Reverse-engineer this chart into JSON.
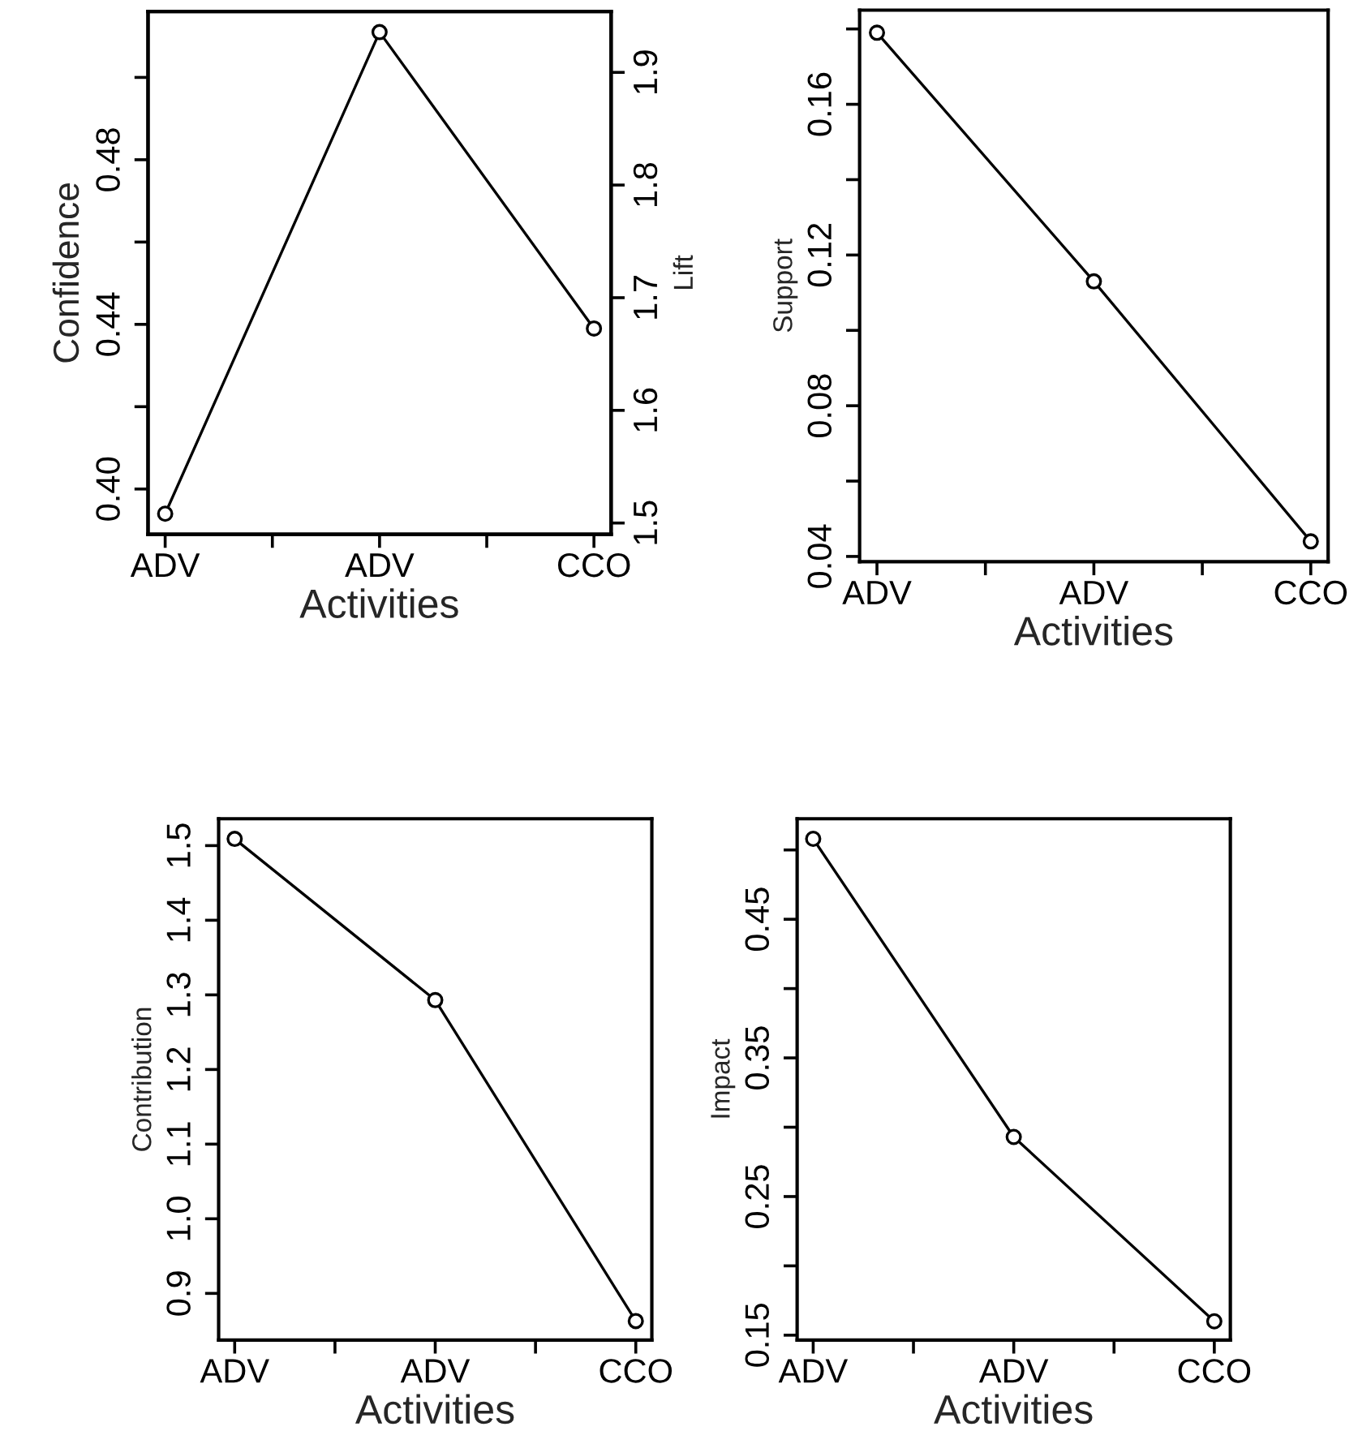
{
  "chart_data": [
    {
      "type": "line",
      "categories": [
        "ADV",
        "ADV",
        "CCO"
      ],
      "xlabel": "Activities",
      "ylabel": "Confidence",
      "y2label": "Lift",
      "series": [
        {
          "color": "#000000",
          "values": [
            0.394,
            0.511,
            0.439
          ]
        }
      ],
      "ylim": [
        0.389,
        0.516
      ],
      "yticks": [
        {
          "value": 0.4,
          "label": "0.40"
        },
        {
          "value": 0.42,
          "label": null
        },
        0.44,
        {
          "value": 0.46,
          "label": null
        },
        0.48,
        {
          "value": 0.5,
          "label": null
        }
      ],
      "y2lim": [
        1.49,
        1.954
      ],
      "y2ticks": [
        1.5,
        1.6,
        1.7,
        1.8,
        1.9
      ],
      "grid": false,
      "legend": false,
      "marker": "circle",
      "line_style": "solid"
    },
    {
      "type": "line",
      "categories": [
        "ADV",
        "ADV",
        "CCO"
      ],
      "xlabel": "Activities",
      "ylabel": "Support",
      "series": [
        {
          "color": "#000000",
          "values": [
            0.179,
            0.113,
            0.044
          ]
        }
      ],
      "ylim": [
        0.0386,
        0.185
      ],
      "yticks": [
        0.04,
        {
          "value": 0.06,
          "label": null
        },
        0.08,
        {
          "value": 0.1,
          "label": null
        },
        0.12,
        {
          "value": 0.14,
          "label": null
        },
        0.16,
        {
          "value": 0.18,
          "label": null
        }
      ],
      "grid": false,
      "legend": false,
      "marker": "circle",
      "line_style": "solid"
    },
    {
      "type": "line",
      "categories": [
        "ADV",
        "ADV",
        "CCO"
      ],
      "xlabel": "Activities",
      "ylabel": "Contribution",
      "series": [
        {
          "color": "#000000",
          "values": [
            1.509,
            1.293,
            0.863
          ]
        }
      ],
      "ylim": [
        0.8375,
        1.536
      ],
      "yticks": [
        0.9,
        {
          "value": 1.0,
          "label": "1.0"
        },
        1.1,
        1.2,
        1.3,
        1.4,
        1.5
      ],
      "grid": false,
      "legend": false,
      "marker": "circle",
      "line_style": "solid"
    },
    {
      "type": "line",
      "categories": [
        "ADV",
        "ADV",
        "CCO"
      ],
      "xlabel": "Activities",
      "ylabel": "Impact",
      "series": [
        {
          "color": "#000000",
          "values": [
            0.508,
            0.293,
            0.16
          ]
        }
      ],
      "ylim": [
        0.1465,
        0.5225
      ],
      "yticks": [
        0.15,
        {
          "value": 0.2,
          "label": null
        },
        0.25,
        {
          "value": 0.3,
          "label": null
        },
        0.35,
        {
          "value": 0.4,
          "label": null
        },
        0.45,
        {
          "value": 0.5,
          "label": null
        }
      ],
      "grid": false,
      "legend": false,
      "marker": "circle",
      "line_style": "solid"
    }
  ]
}
